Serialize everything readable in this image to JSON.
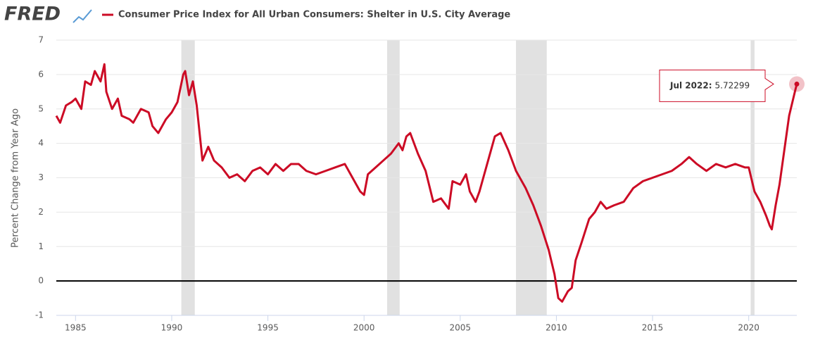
{
  "logo": "FRED",
  "chart_data": {
    "type": "line",
    "y_label": "Percent Change from Year Ago",
    "x": [
      1984.0,
      1984.2,
      1984.5,
      1984.8,
      1985.0,
      1985.3,
      1985.5,
      1985.8,
      1986.0,
      1986.3,
      1986.5,
      1986.6,
      1986.9,
      1987.2,
      1987.4,
      1987.8,
      1988.0,
      1988.4,
      1988.8,
      1989.0,
      1989.3,
      1989.7,
      1990.0,
      1990.3,
      1990.6,
      1990.7,
      1990.9,
      1991.1,
      1991.3,
      1991.6,
      1991.9,
      1992.2,
      1992.6,
      1993.0,
      1993.4,
      1993.8,
      1994.2,
      1994.6,
      1995.0,
      1995.4,
      1995.8,
      1996.2,
      1996.6,
      1997.0,
      1997.5,
      1998.0,
      1998.5,
      1999.0,
      1999.4,
      1999.8,
      2000.0,
      2000.2,
      2000.6,
      2001.0,
      2001.4,
      2001.8,
      2002.0,
      2002.2,
      2002.4,
      2002.8,
      2003.2,
      2003.6,
      2004.0,
      2004.4,
      2004.6,
      2005.0,
      2005.3,
      2005.5,
      2005.8,
      2006.0,
      2006.5,
      2006.8,
      2007.1,
      2007.5,
      2007.9,
      2008.4,
      2008.8,
      2009.2,
      2009.6,
      2009.9,
      2010.1,
      2010.3,
      2010.6,
      2010.8,
      2011.0,
      2011.3,
      2011.7,
      2012.0,
      2012.3,
      2012.6,
      2013.0,
      2013.5,
      2014.0,
      2014.5,
      2015.0,
      2015.5,
      2016.0,
      2016.5,
      2016.9,
      2017.3,
      2017.8,
      2018.3,
      2018.8,
      2019.3,
      2019.8,
      2020.0,
      2020.3,
      2020.6,
      2020.9,
      2021.1,
      2021.2,
      2021.4,
      2021.6,
      2021.9,
      2022.1,
      2022.4,
      2022.5
    ],
    "series": [
      {
        "name": "Consumer Price Index for All Urban Consumers: Shelter in U.S. City Average",
        "color": "#cc0b25",
        "values": [
          4.8,
          4.6,
          5.1,
          5.2,
          5.3,
          5.0,
          5.8,
          5.7,
          6.1,
          5.8,
          6.3,
          5.5,
          5.0,
          5.3,
          4.8,
          4.7,
          4.6,
          5.0,
          4.9,
          4.5,
          4.3,
          4.7,
          4.9,
          5.2,
          6.0,
          6.1,
          5.4,
          5.8,
          5.1,
          3.5,
          3.9,
          3.5,
          3.3,
          3.0,
          3.1,
          2.9,
          3.2,
          3.3,
          3.1,
          3.4,
          3.2,
          3.4,
          3.4,
          3.2,
          3.1,
          3.2,
          3.3,
          3.4,
          3.0,
          2.6,
          2.5,
          3.1,
          3.3,
          3.5,
          3.7,
          4.0,
          3.8,
          4.2,
          4.3,
          3.7,
          3.2,
          2.3,
          2.4,
          2.1,
          2.9,
          2.8,
          3.1,
          2.6,
          2.3,
          2.6,
          3.6,
          4.2,
          4.3,
          3.8,
          3.2,
          2.7,
          2.2,
          1.6,
          0.9,
          0.2,
          -0.5,
          -0.6,
          -0.3,
          -0.2,
          0.6,
          1.1,
          1.8,
          2.0,
          2.3,
          2.1,
          2.2,
          2.3,
          2.7,
          2.9,
          3.0,
          3.1,
          3.2,
          3.4,
          3.6,
          3.4,
          3.2,
          3.4,
          3.3,
          3.4,
          3.3,
          3.3,
          2.6,
          2.3,
          1.9,
          1.6,
          1.5,
          2.2,
          2.8,
          4.0,
          4.8,
          5.5,
          5.72299
        ]
      }
    ],
    "recessions": [
      [
        1990.5,
        1991.2
      ],
      [
        2001.2,
        2001.85
      ],
      [
        2007.9,
        2009.5
      ],
      [
        2020.1,
        2020.3
      ]
    ],
    "xlim": [
      1984.0,
      2022.5
    ],
    "xticks": [
      1985,
      1990,
      1995,
      2000,
      2005,
      2010,
      2015,
      2020
    ],
    "ylim": [
      -1,
      7
    ],
    "yticks": [
      -1,
      0,
      1,
      2,
      3,
      4,
      5,
      6,
      7
    ],
    "grid": true,
    "annotation": {
      "label": "Jul 2022:",
      "value": 5.72299
    }
  }
}
